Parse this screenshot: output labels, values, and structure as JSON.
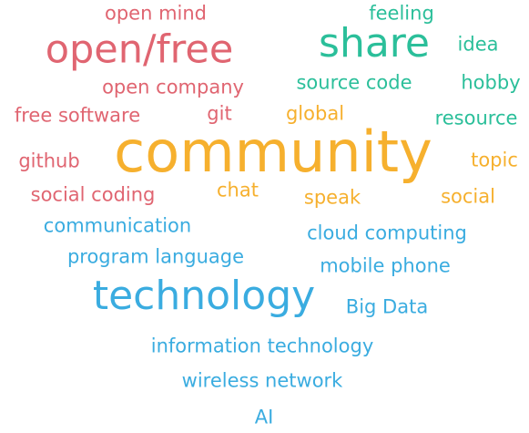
{
  "colors": {
    "red": "#e06571",
    "teal": "#2bbf9a",
    "orange": "#f6b02e",
    "blue": "#3aace0"
  },
  "words": [
    {
      "id": "open-mind",
      "text": "open mind",
      "color": "#e06571"
    },
    {
      "id": "feeling",
      "text": "feeling",
      "color": "#2bbf9a"
    },
    {
      "id": "open-free",
      "text": "open/free",
      "color": "#e06571"
    },
    {
      "id": "share",
      "text": "share",
      "color": "#2bbf9a"
    },
    {
      "id": "idea",
      "text": "idea",
      "color": "#2bbf9a"
    },
    {
      "id": "open-company",
      "text": "open company",
      "color": "#e06571"
    },
    {
      "id": "source-code",
      "text": "source code",
      "color": "#2bbf9a"
    },
    {
      "id": "hobby",
      "text": "hobby",
      "color": "#2bbf9a"
    },
    {
      "id": "free-software",
      "text": "free software",
      "color": "#e06571"
    },
    {
      "id": "git",
      "text": "git",
      "color": "#e06571"
    },
    {
      "id": "global",
      "text": "global",
      "color": "#f6b02e"
    },
    {
      "id": "resource",
      "text": "resource",
      "color": "#2bbf9a"
    },
    {
      "id": "community",
      "text": "community",
      "color": "#f6b02e"
    },
    {
      "id": "github",
      "text": "github",
      "color": "#e06571"
    },
    {
      "id": "topic",
      "text": "topic",
      "color": "#f6b02e"
    },
    {
      "id": "social-coding",
      "text": "social coding",
      "color": "#e06571"
    },
    {
      "id": "chat",
      "text": "chat",
      "color": "#f6b02e"
    },
    {
      "id": "speak",
      "text": "speak",
      "color": "#f6b02e"
    },
    {
      "id": "social",
      "text": "social",
      "color": "#f6b02e"
    },
    {
      "id": "communication",
      "text": "communication",
      "color": "#3aace0"
    },
    {
      "id": "cloud-computing",
      "text": "cloud computing",
      "color": "#3aace0"
    },
    {
      "id": "program-language",
      "text": "program language",
      "color": "#3aace0"
    },
    {
      "id": "mobile-phone",
      "text": "mobile phone",
      "color": "#3aace0"
    },
    {
      "id": "technology",
      "text": "technology",
      "color": "#3aace0"
    },
    {
      "id": "big-data",
      "text": "Big Data",
      "color": "#3aace0"
    },
    {
      "id": "information-technology",
      "text": "information technology",
      "color": "#3aace0"
    },
    {
      "id": "wireless-network",
      "text": "wireless network",
      "color": "#3aace0"
    },
    {
      "id": "ai",
      "text": "AI",
      "color": "#3aace0"
    }
  ]
}
